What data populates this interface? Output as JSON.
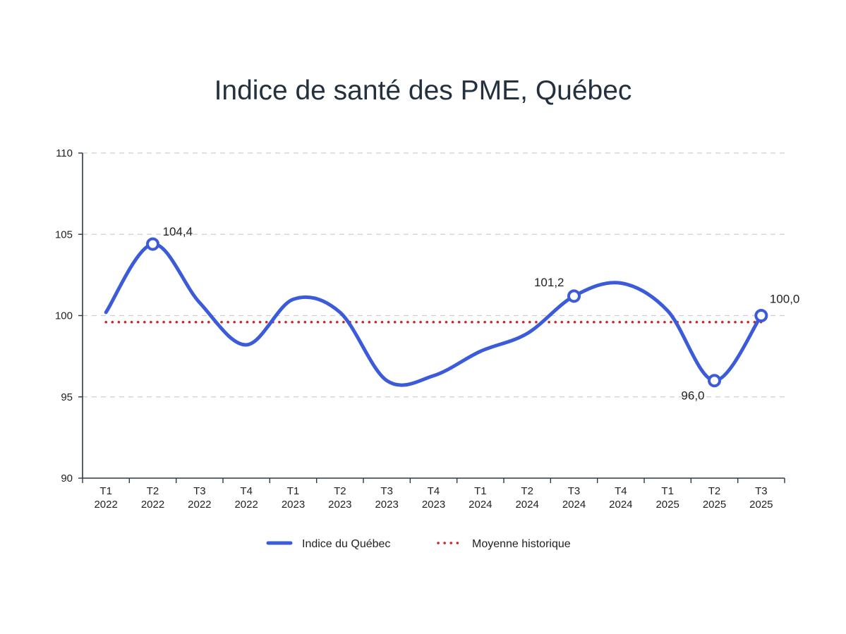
{
  "chart_data": {
    "type": "line",
    "title": "Indice de santé des PME, Québec",
    "xlabel": "",
    "ylabel": "",
    "categories": [
      [
        "T1",
        "2022"
      ],
      [
        "T2",
        "2022"
      ],
      [
        "T3",
        "2022"
      ],
      [
        "T4",
        "2022"
      ],
      [
        "T1",
        "2023"
      ],
      [
        "T2",
        "2023"
      ],
      [
        "T3",
        "2023"
      ],
      [
        "T4",
        "2023"
      ],
      [
        "T1",
        "2024"
      ],
      [
        "T2",
        "2024"
      ],
      [
        "T3",
        "2024"
      ],
      [
        "T4",
        "2024"
      ],
      [
        "T1",
        "2025"
      ],
      [
        "T2",
        "2025"
      ],
      [
        "T3",
        "2025"
      ]
    ],
    "ylim": [
      90,
      110
    ],
    "yticks": [
      90,
      95,
      100,
      105,
      110
    ],
    "ytick_labels": [
      "90",
      "95",
      "100",
      "105",
      "110"
    ],
    "grid": true,
    "legend_position": "bottom-center",
    "series": [
      {
        "name": "Indice du Québec",
        "style": "solid-smooth",
        "color": "#3b5bdb",
        "values": [
          100.2,
          104.4,
          100.8,
          98.2,
          101.0,
          100.2,
          96.0,
          96.3,
          97.8,
          98.9,
          101.2,
          102.0,
          100.3,
          96.0,
          100.0
        ],
        "labeled_points": [
          {
            "index": 1,
            "label": "104,4"
          },
          {
            "index": 10,
            "label": "101,2"
          },
          {
            "index": 13,
            "label": "96,0"
          },
          {
            "index": 14,
            "label": "100,0"
          }
        ]
      },
      {
        "name": "Moyenne historique",
        "style": "dotted",
        "color": "#d42020",
        "values": [
          99.6,
          99.6,
          99.6,
          99.6,
          99.6,
          99.6,
          99.6,
          99.6,
          99.6,
          99.6,
          99.6,
          99.6,
          99.6,
          99.6,
          99.6
        ]
      }
    ]
  }
}
